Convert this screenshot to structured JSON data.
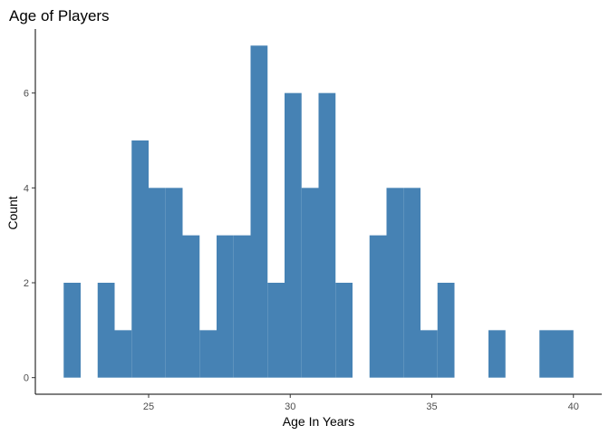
{
  "chart_data": {
    "type": "bar",
    "subtype": "histogram",
    "title": "Age of Players",
    "xlabel": "Age In Years",
    "ylabel": "Count",
    "bin_width": 0.6,
    "bins": [
      {
        "x0": 22.0,
        "x1": 22.6,
        "count": 2
      },
      {
        "x0": 22.6,
        "x1": 23.2,
        "count": 0
      },
      {
        "x0": 23.2,
        "x1": 23.8,
        "count": 2
      },
      {
        "x0": 23.8,
        "x1": 24.4,
        "count": 1
      },
      {
        "x0": 24.4,
        "x1": 25.0,
        "count": 5
      },
      {
        "x0": 25.0,
        "x1": 25.6,
        "count": 4
      },
      {
        "x0": 25.6,
        "x1": 26.2,
        "count": 4
      },
      {
        "x0": 26.2,
        "x1": 26.8,
        "count": 3
      },
      {
        "x0": 26.8,
        "x1": 27.4,
        "count": 1
      },
      {
        "x0": 27.4,
        "x1": 28.0,
        "count": 3
      },
      {
        "x0": 28.0,
        "x1": 28.6,
        "count": 3
      },
      {
        "x0": 28.6,
        "x1": 29.2,
        "count": 7
      },
      {
        "x0": 29.2,
        "x1": 29.8,
        "count": 2
      },
      {
        "x0": 29.8,
        "x1": 30.4,
        "count": 6
      },
      {
        "x0": 30.4,
        "x1": 31.0,
        "count": 4
      },
      {
        "x0": 31.0,
        "x1": 31.6,
        "count": 6
      },
      {
        "x0": 31.6,
        "x1": 32.2,
        "count": 2
      },
      {
        "x0": 32.2,
        "x1": 32.8,
        "count": 0
      },
      {
        "x0": 32.8,
        "x1": 33.4,
        "count": 3
      },
      {
        "x0": 33.4,
        "x1": 34.0,
        "count": 4
      },
      {
        "x0": 34.0,
        "x1": 34.6,
        "count": 4
      },
      {
        "x0": 34.6,
        "x1": 35.2,
        "count": 1
      },
      {
        "x0": 35.2,
        "x1": 35.8,
        "count": 2
      },
      {
        "x0": 35.8,
        "x1": 36.4,
        "count": 0
      },
      {
        "x0": 36.4,
        "x1": 37.0,
        "count": 0
      },
      {
        "x0": 37.0,
        "x1": 37.6,
        "count": 1
      },
      {
        "x0": 37.6,
        "x1": 38.2,
        "count": 0
      },
      {
        "x0": 38.2,
        "x1": 38.8,
        "count": 0
      },
      {
        "x0": 38.8,
        "x1": 39.4,
        "count": 1
      },
      {
        "x0": 39.4,
        "x1": 40.0,
        "count": 1
      }
    ],
    "xlim": [
      21.0,
      41.0
    ],
    "ylim": [
      -0.35,
      7.35
    ],
    "x_ticks": [
      25,
      30,
      35,
      40
    ],
    "y_ticks": [
      0,
      2,
      4,
      6
    ],
    "bar_color": "#4682b4",
    "grid": false,
    "legend": "none"
  }
}
